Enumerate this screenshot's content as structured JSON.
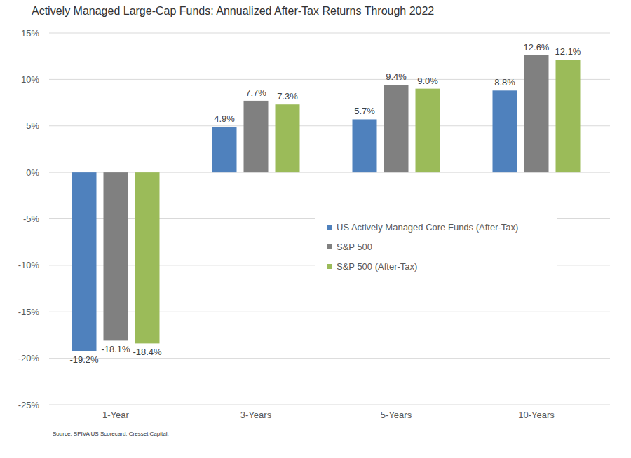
{
  "chart_data": {
    "type": "bar",
    "title": "Actively Managed Large-Cap Funds: Annualized After-Tax Returns Through 2022",
    "source": "Source: SPIVA US Scorecard, Cresset Capital.",
    "categories": [
      "1-Year",
      "3-Years",
      "5-Years",
      "10-Years"
    ],
    "series": [
      {
        "name": "US Actively Managed Core Funds (After-Tax)",
        "color": "#4f81bd",
        "values": [
          -19.2,
          4.9,
          5.7,
          8.8
        ],
        "value_labels": [
          "-19.2%",
          "4.9%",
          "5.7%",
          "8.8%"
        ]
      },
      {
        "name": "S&P 500",
        "color": "#808080",
        "values": [
          -18.1,
          7.7,
          9.4,
          12.6
        ],
        "value_labels": [
          "-18.1%",
          "7.7%",
          "9.4%",
          "12.6%"
        ]
      },
      {
        "name": "S&P 500 (After-Tax)",
        "color": "#9bbb59",
        "values": [
          -18.4,
          7.3,
          9.0,
          12.1
        ],
        "value_labels": [
          "-18.4%",
          "7.3%",
          "9.0%",
          "12.1%"
        ]
      }
    ],
    "ylim": [
      -25,
      15
    ],
    "yticks": [
      {
        "value": -25,
        "label": "-25%"
      },
      {
        "value": -20,
        "label": "-20%"
      },
      {
        "value": -15,
        "label": "-15%"
      },
      {
        "value": -10,
        "label": "-10%"
      },
      {
        "value": -5,
        "label": "-5%"
      },
      {
        "value": 0,
        "label": "0%"
      },
      {
        "value": 5,
        "label": "5%"
      },
      {
        "value": 10,
        "label": "10%"
      },
      {
        "value": 15,
        "label": "15%"
      }
    ],
    "grid": true,
    "legend": "right",
    "data_labels": true
  }
}
